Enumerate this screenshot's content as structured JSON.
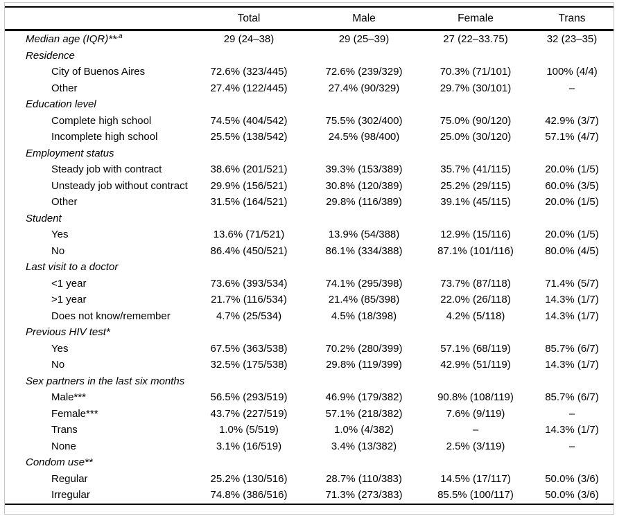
{
  "table": {
    "columns": [
      "",
      "Total",
      "Male",
      "Female",
      "Trans"
    ],
    "rows": [
      {
        "label": "Median age (IQR)**",
        "sup": ",a",
        "italic": true,
        "indent": false,
        "values": [
          "29 (24–38)",
          "29 (25–39)",
          "27 (22–33.75)",
          "32 (23–35)"
        ]
      },
      {
        "label": "Residence",
        "italic": true,
        "indent": false,
        "values": [
          "",
          "",
          "",
          ""
        ]
      },
      {
        "label": "City of Buenos Aires",
        "italic": false,
        "indent": true,
        "values": [
          "72.6% (323/445)",
          "72.6% (239/329)",
          "70.3% (71/101)",
          "100% (4/4)"
        ]
      },
      {
        "label": "Other",
        "italic": false,
        "indent": true,
        "values": [
          "27.4% (122/445)",
          "27.4% (90/329)",
          "29.7% (30/101)",
          "–"
        ]
      },
      {
        "label": "Education level",
        "italic": true,
        "indent": false,
        "values": [
          "",
          "",
          "",
          ""
        ]
      },
      {
        "label": "Complete high school",
        "italic": false,
        "indent": true,
        "values": [
          "74.5% (404/542)",
          "75.5% (302/400)",
          "75.0% (90/120)",
          "42.9% (3/7)"
        ]
      },
      {
        "label": "Incomplete high school",
        "italic": false,
        "indent": true,
        "values": [
          "25.5% (138/542)",
          "24.5% (98/400)",
          "25.0% (30/120)",
          "57.1% (4/7)"
        ]
      },
      {
        "label": "Employment status",
        "italic": true,
        "indent": false,
        "values": [
          "",
          "",
          "",
          ""
        ]
      },
      {
        "label": "Steady job with contract",
        "italic": false,
        "indent": true,
        "values": [
          "38.6% (201/521)",
          "39.3% (153/389)",
          "35.7% (41/115)",
          "20.0% (1/5)"
        ]
      },
      {
        "label": "Unsteady job without contract",
        "italic": false,
        "indent": true,
        "values": [
          "29.9% (156/521)",
          "30.8% (120/389)",
          "25.2% (29/115)",
          "60.0% (3/5)"
        ]
      },
      {
        "label": "Other",
        "italic": false,
        "indent": true,
        "values": [
          "31.5% (164/521)",
          "29.8% (116/389)",
          "39.1% (45/115)",
          "20.0% (1/5)"
        ]
      },
      {
        "label": "Student",
        "italic": true,
        "indent": false,
        "values": [
          "",
          "",
          "",
          ""
        ]
      },
      {
        "label": "Yes",
        "italic": false,
        "indent": true,
        "values": [
          "13.6% (71/521)",
          "13.9% (54/388)",
          "12.9% (15/116)",
          "20.0% (1/5)"
        ]
      },
      {
        "label": "No",
        "italic": false,
        "indent": true,
        "values": [
          "86.4% (450/521)",
          "86.1% (334/388)",
          "87.1% (101/116)",
          "80.0% (4/5)"
        ]
      },
      {
        "label": "Last visit to a doctor",
        "italic": true,
        "indent": false,
        "values": [
          "",
          "",
          "",
          ""
        ]
      },
      {
        "label": "<1 year",
        "italic": false,
        "indent": true,
        "values": [
          "73.6% (393/534)",
          "74.1% (295/398)",
          "73.7% (87/118)",
          "71.4% (5/7)"
        ]
      },
      {
        "label": ">1 year",
        "italic": false,
        "indent": true,
        "values": [
          "21.7% (116/534)",
          "21.4% (85/398)",
          "22.0% (26/118)",
          "14.3% (1/7)"
        ]
      },
      {
        "label": "Does not know/remember",
        "italic": false,
        "indent": true,
        "values": [
          "4.7% (25/534)",
          "4.5% (18/398)",
          "4.2% (5/118)",
          "14.3% (1/7)"
        ]
      },
      {
        "label": "Previous HIV test*",
        "italic": true,
        "indent": false,
        "values": [
          "",
          "",
          "",
          ""
        ]
      },
      {
        "label": "Yes",
        "italic": false,
        "indent": true,
        "values": [
          "67.5% (363/538)",
          "70.2% (280/399)",
          "57.1% (68/119)",
          "85.7% (6/7)"
        ]
      },
      {
        "label": "No",
        "italic": false,
        "indent": true,
        "values": [
          "32.5% (175/538)",
          "29.8% (119/399)",
          "42.9% (51/119)",
          "14.3% (1/7)"
        ]
      },
      {
        "label": "Sex partners in the last six months",
        "italic": true,
        "indent": false,
        "values": [
          "",
          "",
          "",
          ""
        ]
      },
      {
        "label": "Male***",
        "italic": false,
        "indent": true,
        "values": [
          "56.5% (293/519)",
          "46.9% (179/382)",
          "90.8% (108/119)",
          "85.7% (6/7)"
        ]
      },
      {
        "label": "Female***",
        "italic": false,
        "indent": true,
        "values": [
          "43.7% (227/519)",
          "57.1% (218/382)",
          "7.6% (9/119)",
          "–"
        ]
      },
      {
        "label": "Trans",
        "italic": false,
        "indent": true,
        "values": [
          "1.0% (5/519)",
          "1.0% (4/382)",
          "–",
          "14.3% (1/7)"
        ]
      },
      {
        "label": "None",
        "italic": false,
        "indent": true,
        "values": [
          "3.1% (16/519)",
          "3.4% (13/382)",
          "2.5% (3/119)",
          "–"
        ]
      },
      {
        "label": "Condom use**",
        "italic": true,
        "indent": false,
        "values": [
          "",
          "",
          "",
          ""
        ]
      },
      {
        "label": "Regular",
        "italic": false,
        "indent": true,
        "values": [
          "25.2% (130/516)",
          "28.7% (110/383)",
          "14.5% (17/117)",
          "50.0% (3/6)"
        ]
      },
      {
        "label": "Irregular",
        "italic": false,
        "indent": true,
        "values": [
          "74.8% (386/516)",
          "71.3% (273/383)",
          "85.5% (100/117)",
          "50.0% (3/6)"
        ]
      }
    ],
    "rule_color": "#000000",
    "frame_color": "#c6c6c6",
    "dash_placeholder": "–"
  }
}
